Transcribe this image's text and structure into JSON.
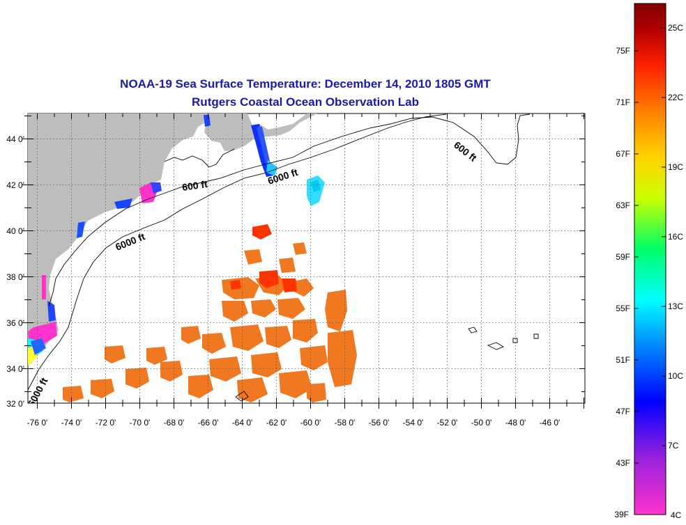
{
  "title": {
    "line1": "NOAA-19 Sea Surface Temperature:  December 14, 2010 1805 GMT",
    "line2": "Rutgers Coastal Ocean Observation Lab"
  },
  "map": {
    "lon_range": [
      -77.0,
      -44.4
    ],
    "lat_range": [
      32.0,
      45.0
    ],
    "lon_ticks": [
      "-76 0'",
      "-74 0'",
      "-72 0'",
      "-70 0'",
      "-68 0'",
      "-66 0'",
      "-64 0'",
      "-62 0'",
      "-60 0'",
      "-58 0'",
      "-56 0'",
      "-54 0'",
      "-52 0'",
      "-50 0'",
      "-48 0'",
      "-46 0'"
    ],
    "lat_ticks": [
      "44 0'",
      "42 0'",
      "40 0'",
      "38 0'",
      "36 0'",
      "34 0'",
      "32 0'"
    ],
    "grid": "dotted",
    "contour_labels": [
      "600 ft",
      "600 ft",
      "6000 ft",
      "6000 ft",
      "6000 ft"
    ],
    "land_color": "#bdbdbd"
  },
  "colorbar": {
    "fahrenheit_labels": [
      "75F",
      "71F",
      "67F",
      "63F",
      "59F",
      "55F",
      "51F",
      "47F",
      "43F",
      "39F"
    ],
    "celsius_labels": [
      "25C",
      "22C",
      "19C",
      "16C",
      "13C",
      "10C",
      "7C",
      "4C"
    ],
    "colors": [
      "#ff33cc",
      "#9922dd",
      "#0000ff",
      "#0088ff",
      "#00ffff",
      "#00ff66",
      "#ccff00",
      "#ffd200",
      "#ff8800",
      "#ff2000",
      "#b00000",
      "#800000"
    ]
  }
}
